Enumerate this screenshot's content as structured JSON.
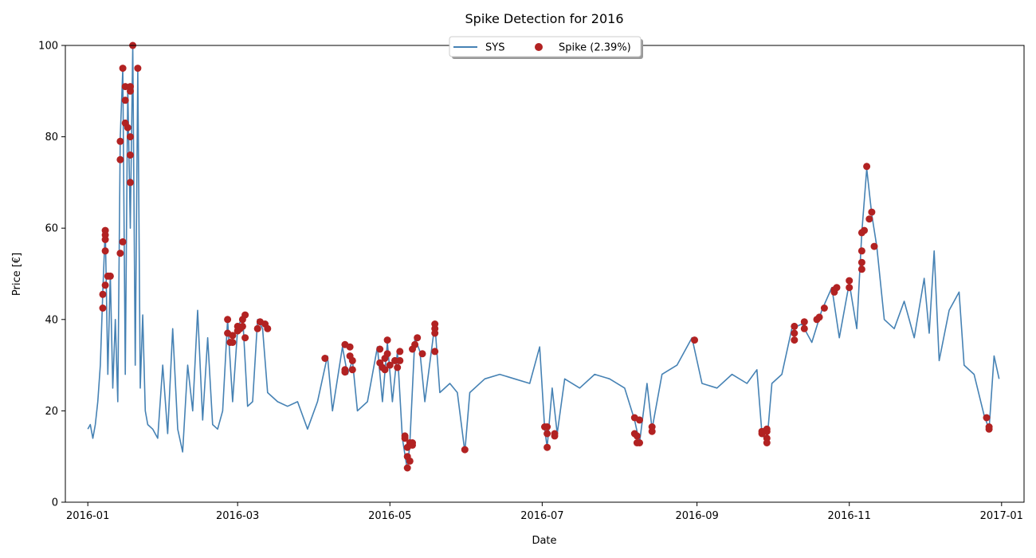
{
  "chart_data": {
    "type": "line",
    "title": "Spike Detection for 2016",
    "xlabel": "Date",
    "ylabel": "Price [€]",
    "ylim": [
      0,
      100
    ],
    "xlim": [
      "2015-12-23",
      "2017-01-10"
    ],
    "x_ticks": [
      "2016-01",
      "2016-03",
      "2016-05",
      "2016-07",
      "2016-09",
      "2016-11",
      "2017-01"
    ],
    "y_ticks": [
      0,
      20,
      40,
      60,
      80,
      100
    ],
    "legend": {
      "placement": "top-center",
      "entries": [
        "SYS",
        "Spike (2.39%)"
      ]
    },
    "grid": false,
    "series": [
      {
        "name": "SYS",
        "kind": "line",
        "color": "#4682b4",
        "points": [
          [
            "2016-01-01",
            16
          ],
          [
            "2016-01-02",
            17
          ],
          [
            "2016-01-03",
            14
          ],
          [
            "2016-01-04",
            17
          ],
          [
            "2016-01-05",
            22
          ],
          [
            "2016-01-06",
            30
          ],
          [
            "2016-01-07",
            46
          ],
          [
            "2016-01-08",
            60
          ],
          [
            "2016-01-09",
            28
          ],
          [
            "2016-01-10",
            50
          ],
          [
            "2016-01-11",
            25
          ],
          [
            "2016-01-12",
            40
          ],
          [
            "2016-01-13",
            22
          ],
          [
            "2016-01-14",
            80
          ],
          [
            "2016-01-15",
            95
          ],
          [
            "2016-01-16",
            28
          ],
          [
            "2016-01-17",
            91
          ],
          [
            "2016-01-18",
            60
          ],
          [
            "2016-01-19",
            100
          ],
          [
            "2016-01-20",
            30
          ],
          [
            "2016-01-21",
            95
          ],
          [
            "2016-01-22",
            25
          ],
          [
            "2016-01-23",
            41
          ],
          [
            "2016-01-24",
            20
          ],
          [
            "2016-01-25",
            17
          ],
          [
            "2016-01-27",
            16
          ],
          [
            "2016-01-29",
            14
          ],
          [
            "2016-01-31",
            30
          ],
          [
            "2016-02-02",
            15
          ],
          [
            "2016-02-04",
            38
          ],
          [
            "2016-02-06",
            16
          ],
          [
            "2016-02-08",
            11
          ],
          [
            "2016-02-10",
            30
          ],
          [
            "2016-02-12",
            20
          ],
          [
            "2016-02-14",
            42
          ],
          [
            "2016-02-16",
            18
          ],
          [
            "2016-02-18",
            36
          ],
          [
            "2016-02-20",
            17
          ],
          [
            "2016-02-22",
            16
          ],
          [
            "2016-02-24",
            20
          ],
          [
            "2016-02-26",
            40
          ],
          [
            "2016-02-28",
            22
          ],
          [
            "2016-03-01",
            38
          ],
          [
            "2016-03-03",
            41
          ],
          [
            "2016-03-05",
            21
          ],
          [
            "2016-03-07",
            22
          ],
          [
            "2016-03-09",
            40
          ],
          [
            "2016-03-11",
            38
          ],
          [
            "2016-03-13",
            24
          ],
          [
            "2016-03-17",
            22
          ],
          [
            "2016-03-21",
            21
          ],
          [
            "2016-03-25",
            22
          ],
          [
            "2016-03-29",
            16
          ],
          [
            "2016-04-02",
            22
          ],
          [
            "2016-04-06",
            32
          ],
          [
            "2016-04-08",
            20
          ],
          [
            "2016-04-12",
            34
          ],
          [
            "2016-04-14",
            28
          ],
          [
            "2016-04-16",
            31
          ],
          [
            "2016-04-18",
            20
          ],
          [
            "2016-04-22",
            22
          ],
          [
            "2016-04-26",
            34
          ],
          [
            "2016-04-28",
            22
          ],
          [
            "2016-04-30",
            35
          ],
          [
            "2016-05-02",
            22
          ],
          [
            "2016-05-04",
            33
          ],
          [
            "2016-05-06",
            14
          ],
          [
            "2016-05-08",
            7
          ],
          [
            "2016-05-09",
            13
          ],
          [
            "2016-05-11",
            36
          ],
          [
            "2016-05-13",
            33
          ],
          [
            "2016-05-15",
            22
          ],
          [
            "2016-05-19",
            39
          ],
          [
            "2016-05-21",
            24
          ],
          [
            "2016-05-25",
            26
          ],
          [
            "2016-05-28",
            24
          ],
          [
            "2016-05-31",
            11
          ],
          [
            "2016-06-02",
            24
          ],
          [
            "2016-06-08",
            27
          ],
          [
            "2016-06-14",
            28
          ],
          [
            "2016-06-20",
            27
          ],
          [
            "2016-06-26",
            26
          ],
          [
            "2016-06-30",
            34
          ],
          [
            "2016-07-02",
            16
          ],
          [
            "2016-07-03",
            12
          ],
          [
            "2016-07-05",
            25
          ],
          [
            "2016-07-07",
            15
          ],
          [
            "2016-07-10",
            27
          ],
          [
            "2016-07-16",
            25
          ],
          [
            "2016-07-22",
            28
          ],
          [
            "2016-07-28",
            27
          ],
          [
            "2016-08-03",
            25
          ],
          [
            "2016-08-07",
            18
          ],
          [
            "2016-08-09",
            13
          ],
          [
            "2016-08-12",
            26
          ],
          [
            "2016-08-14",
            16
          ],
          [
            "2016-08-18",
            28
          ],
          [
            "2016-08-24",
            30
          ],
          [
            "2016-08-30",
            36
          ],
          [
            "2016-09-03",
            26
          ],
          [
            "2016-09-09",
            25
          ],
          [
            "2016-09-15",
            28
          ],
          [
            "2016-09-21",
            26
          ],
          [
            "2016-09-25",
            29
          ],
          [
            "2016-09-27",
            15
          ],
          [
            "2016-09-29",
            13
          ],
          [
            "2016-10-01",
            26
          ],
          [
            "2016-10-05",
            28
          ],
          [
            "2016-10-09",
            38
          ],
          [
            "2016-10-13",
            39
          ],
          [
            "2016-10-17",
            35
          ],
          [
            "2016-10-21",
            42
          ],
          [
            "2016-10-25",
            47
          ],
          [
            "2016-10-28",
            36
          ],
          [
            "2016-11-01",
            48
          ],
          [
            "2016-11-04",
            38
          ],
          [
            "2016-11-06",
            59
          ],
          [
            "2016-11-08",
            73
          ],
          [
            "2016-11-10",
            63
          ],
          [
            "2016-11-12",
            56
          ],
          [
            "2016-11-15",
            40
          ],
          [
            "2016-11-19",
            38
          ],
          [
            "2016-11-23",
            44
          ],
          [
            "2016-11-27",
            36
          ],
          [
            "2016-12-01",
            49
          ],
          [
            "2016-12-03",
            37
          ],
          [
            "2016-12-05",
            55
          ],
          [
            "2016-12-07",
            31
          ],
          [
            "2016-12-11",
            42
          ],
          [
            "2016-12-15",
            46
          ],
          [
            "2016-12-17",
            30
          ],
          [
            "2016-12-21",
            28
          ],
          [
            "2016-12-25",
            19
          ],
          [
            "2016-12-27",
            16
          ],
          [
            "2016-12-29",
            32
          ],
          [
            "2016-12-31",
            27
          ]
        ]
      },
      {
        "name": "Spike (2.39%)",
        "kind": "scatter",
        "color": "#b22222",
        "points": [
          [
            "2016-01-07",
            42.5
          ],
          [
            "2016-01-07",
            45.5
          ],
          [
            "2016-01-08",
            47.5
          ],
          [
            "2016-01-08",
            55
          ],
          [
            "2016-01-08",
            57.5
          ],
          [
            "2016-01-08",
            58.5
          ],
          [
            "2016-01-08",
            59.5
          ],
          [
            "2016-01-09",
            49.5
          ],
          [
            "2016-01-10",
            49.5
          ],
          [
            "2016-01-14",
            79
          ],
          [
            "2016-01-14",
            75
          ],
          [
            "2016-01-14",
            54.5
          ],
          [
            "2016-01-15",
            57
          ],
          [
            "2016-01-15",
            95
          ],
          [
            "2016-01-16",
            91
          ],
          [
            "2016-01-16",
            88
          ],
          [
            "2016-01-16",
            83
          ],
          [
            "2016-01-17",
            82
          ],
          [
            "2016-01-18",
            90
          ],
          [
            "2016-01-18",
            91
          ],
          [
            "2016-01-18",
            80
          ],
          [
            "2016-01-18",
            76
          ],
          [
            "2016-01-18",
            70
          ],
          [
            "2016-01-19",
            100
          ],
          [
            "2016-01-21",
            95
          ],
          [
            "2016-02-26",
            37
          ],
          [
            "2016-02-26",
            40
          ],
          [
            "2016-02-27",
            35
          ],
          [
            "2016-02-28",
            35
          ],
          [
            "2016-02-28",
            36.5
          ],
          [
            "2016-03-01",
            38.5
          ],
          [
            "2016-03-01",
            37.5
          ],
          [
            "2016-03-02",
            38
          ],
          [
            "2016-03-03",
            38.5
          ],
          [
            "2016-03-03",
            40
          ],
          [
            "2016-03-04",
            41
          ],
          [
            "2016-03-04",
            36
          ],
          [
            "2016-03-09",
            38
          ],
          [
            "2016-03-10",
            39.5
          ],
          [
            "2016-03-12",
            39
          ],
          [
            "2016-03-13",
            38
          ],
          [
            "2016-04-05",
            31.5
          ],
          [
            "2016-04-13",
            34.5
          ],
          [
            "2016-04-13",
            29
          ],
          [
            "2016-04-13",
            28.5
          ],
          [
            "2016-04-15",
            34
          ],
          [
            "2016-04-15",
            32
          ],
          [
            "2016-04-16",
            29
          ],
          [
            "2016-04-16",
            31
          ],
          [
            "2016-04-27",
            33.5
          ],
          [
            "2016-04-27",
            30.5
          ],
          [
            "2016-04-28",
            29.5
          ],
          [
            "2016-04-29",
            31.5
          ],
          [
            "2016-04-29",
            29
          ],
          [
            "2016-04-30",
            35.5
          ],
          [
            "2016-04-30",
            32.5
          ],
          [
            "2016-05-01",
            30
          ],
          [
            "2016-05-03",
            31
          ],
          [
            "2016-05-04",
            29.5
          ],
          [
            "2016-05-05",
            33
          ],
          [
            "2016-05-05",
            31
          ],
          [
            "2016-05-07",
            14.5
          ],
          [
            "2016-05-07",
            14
          ],
          [
            "2016-05-08",
            12
          ],
          [
            "2016-05-08",
            10
          ],
          [
            "2016-05-08",
            7.5
          ],
          [
            "2016-05-09",
            9
          ],
          [
            "2016-05-09",
            13
          ],
          [
            "2016-05-10",
            13
          ],
          [
            "2016-05-10",
            12.5
          ],
          [
            "2016-05-10",
            33.5
          ],
          [
            "2016-05-11",
            34.5
          ],
          [
            "2016-05-12",
            36
          ],
          [
            "2016-05-14",
            32.5
          ],
          [
            "2016-05-19",
            39
          ],
          [
            "2016-05-19",
            38
          ],
          [
            "2016-05-19",
            37
          ],
          [
            "2016-05-19",
            33
          ],
          [
            "2016-05-31",
            11.5
          ],
          [
            "2016-07-02",
            16.5
          ],
          [
            "2016-07-03",
            16.5
          ],
          [
            "2016-07-03",
            15
          ],
          [
            "2016-07-03",
            12
          ],
          [
            "2016-07-06",
            15
          ],
          [
            "2016-07-06",
            14.5
          ],
          [
            "2016-08-07",
            18.5
          ],
          [
            "2016-08-07",
            15
          ],
          [
            "2016-08-08",
            13
          ],
          [
            "2016-08-08",
            14.5
          ],
          [
            "2016-08-09",
            13
          ],
          [
            "2016-08-09",
            18
          ],
          [
            "2016-08-14",
            16.5
          ],
          [
            "2016-08-14",
            15.5
          ],
          [
            "2016-08-31",
            35.5
          ],
          [
            "2016-09-27",
            15.5
          ],
          [
            "2016-09-27",
            15
          ],
          [
            "2016-09-29",
            16
          ],
          [
            "2016-09-29",
            15.5
          ],
          [
            "2016-09-29",
            14
          ],
          [
            "2016-09-29",
            13
          ],
          [
            "2016-10-10",
            38.5
          ],
          [
            "2016-10-10",
            37
          ],
          [
            "2016-10-10",
            35.5
          ],
          [
            "2016-10-14",
            39.5
          ],
          [
            "2016-10-14",
            38
          ],
          [
            "2016-10-19",
            40
          ],
          [
            "2016-10-20",
            40.5
          ],
          [
            "2016-10-22",
            42.5
          ],
          [
            "2016-10-26",
            46.5
          ],
          [
            "2016-10-27",
            47
          ],
          [
            "2016-10-26",
            46
          ],
          [
            "2016-11-01",
            48.5
          ],
          [
            "2016-11-01",
            47
          ],
          [
            "2016-11-06",
            59
          ],
          [
            "2016-11-06",
            55
          ],
          [
            "2016-11-06",
            52.5
          ],
          [
            "2016-11-06",
            51
          ],
          [
            "2016-11-07",
            59.5
          ],
          [
            "2016-11-08",
            73.5
          ],
          [
            "2016-11-09",
            62
          ],
          [
            "2016-11-10",
            63.5
          ],
          [
            "2016-11-11",
            56
          ],
          [
            "2016-12-26",
            18.5
          ],
          [
            "2016-12-27",
            16.5
          ],
          [
            "2016-12-27",
            16
          ]
        ]
      }
    ]
  }
}
